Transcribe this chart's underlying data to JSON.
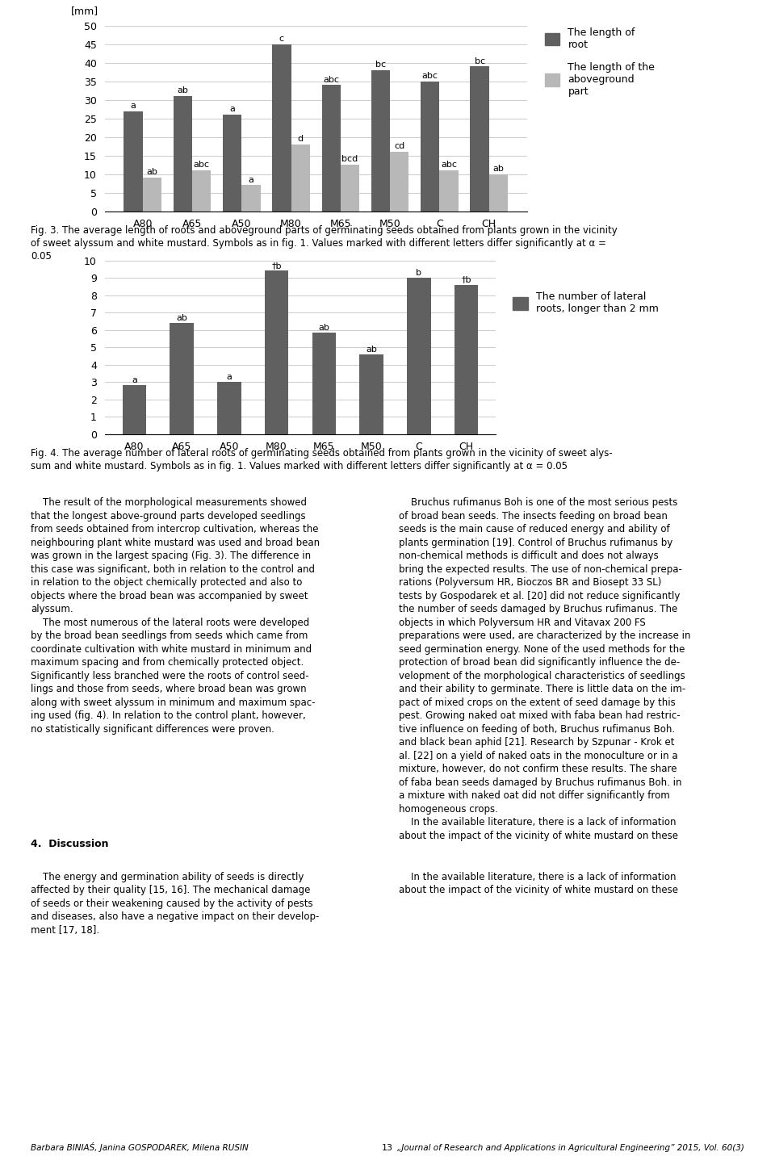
{
  "fig3": {
    "categories": [
      "A80",
      "A65",
      "A50",
      "M80",
      "M65",
      "M50",
      "C",
      "CH"
    ],
    "root_values": [
      27,
      31,
      26,
      45,
      34,
      38,
      35,
      39
    ],
    "above_values": [
      9,
      11,
      7,
      18,
      12.5,
      16,
      11,
      10
    ],
    "root_labels": [
      "a",
      "ab",
      "a",
      "c",
      "abc",
      "bc",
      "abc",
      "bc"
    ],
    "above_labels": [
      "ab",
      "abc",
      "a",
      "d",
      "bcd",
      "cd",
      "abc",
      "ab"
    ],
    "root_color": "#606060",
    "above_color": "#b8b8b8",
    "ylim": [
      0,
      50
    ],
    "yticks": [
      0,
      5,
      10,
      15,
      20,
      25,
      30,
      35,
      40,
      45,
      50
    ],
    "ylabel": "[mm]",
    "legend_root": "The length of\nroot",
    "legend_above": "The length of the\naboveground\npart"
  },
  "fig3_caption": "Fig. 3. The average length of roots and aboveground parts of germinating seeds obtained from plants grown in the vicinity\nof sweet alyssum and white mustard. Symbols as in fig. 1. Values marked with different letters differ significantly at α =\n0.05",
  "fig4": {
    "categories": [
      "A80",
      "A65",
      "A50",
      "M80",
      "M65",
      "M50",
      "C",
      "CH"
    ],
    "values": [
      2.8,
      6.4,
      3.0,
      9.4,
      5.85,
      4.6,
      9.0,
      8.6
    ],
    "labels": [
      "a",
      "ab",
      "a",
      "†b",
      "ab",
      "ab",
      "b",
      "†b"
    ],
    "bar_color": "#606060",
    "ylim": [
      0,
      10
    ],
    "yticks": [
      0,
      1,
      2,
      3,
      4,
      5,
      6,
      7,
      8,
      9,
      10
    ],
    "legend_text": "The number of lateral\nroots, longer than 2 mm"
  },
  "fig4_caption": "Fig. 4. The average number of lateral roots of germinating seeds obtained from plants grown in the vicinity of sweet alys-\nsum and white mustard. Symbols as in fig. 1. Values marked with different letters differ significantly at α = 0.05",
  "left_col_text": "    The result of the morphological measurements showed\nthat the longest above-ground parts developed seedlings\nfrom seeds obtained from intercrop cultivation, whereas the\nneighbouring plant white mustard was used and broad bean\nwas grown in the largest spacing (Fig. 3). The difference in\nthis case was significant, both in relation to the control and\nin relation to the object chemically protected and also to\nobjects where the broad bean was accompanied by sweet\nalyssum.\n    The most numerous of the lateral roots were developed\nby the broad bean seedlings from seeds which came from\ncoordinate cultivation with white mustard in minimum and\nmaximum spacing and from chemically protected object.\nSignificantly less branched were the roots of control seed-\nlings and those from seeds, where broad bean was grown\nalong with sweet alyssum in minimum and maximum spac-\ning used (fig. 4). In relation to the control plant, however,\nno statistically significant differences were proven.",
  "right_col_text": "    Bruchus rufimanus Boh is one of the most serious pests\nof broad bean seeds. The insects feeding on broad bean\nseeds is the main cause of reduced energy and ability of\nplants germination [19]. Control of Bruchus rufimanus by\nnon-chemical methods is difficult and does not always\nbring the expected results. The use of non-chemical prepa-\nrations (Polyversum HR, Bioczos BR and Biosept 33 SL)\ntests by Gospodarek et al. [20] did not reduce significantly\nthe number of seeds damaged by Bruchus rufimanus. The\nobjects in which Polyversum HR and Vitavax 200 FS\npreparations were used, are characterized by the increase in\nseed germination energy. None of the used methods for the\nprotection of broad bean did significantly influence the de-\nvelopment of the morphological characteristics of seedlings\nand their ability to germinate. There is little data on the im-\npact of mixed crops on the extent of seed damage by this\npest. Growing naked oat mixed with faba bean had restric-\ntive influence on feeding of both, Bruchus rufimanus Boh.\nand black bean aphid [21]. Research by Szpunar - Krok et\nal. [22] on a yield of naked oats in the monoculture or in a\nmixture, however, do not confirm these results. The share\nof faba bean seeds damaged by Bruchus rufimanus Boh. in\na mixture with naked oat did not differ significantly from\nhomogeneous crops.\n    In the available literature, there is a lack of information\nabout the impact of the vicinity of white mustard on these",
  "section_header": "4.  Discussion",
  "disc_left": "    The energy and germination ability of seeds is directly\naffected by their quality [15, 16]. The mechanical damage\nof seeds or their weakening caused by the activity of pests\nand diseases, also have a negative impact on their develop-\nment [17, 18].",
  "disc_right": "    In the available literature, there is a lack of information\nabout the impact of the vicinity of white mustard on these",
  "footer_left": "Barbara BINIAŚ, Janina GOSPODAREK, Milena RUSIN",
  "footer_center": "13",
  "footer_right": "„Journal of Research and Applications in Agricultural Engineering” 2015, Vol. 60(3)"
}
